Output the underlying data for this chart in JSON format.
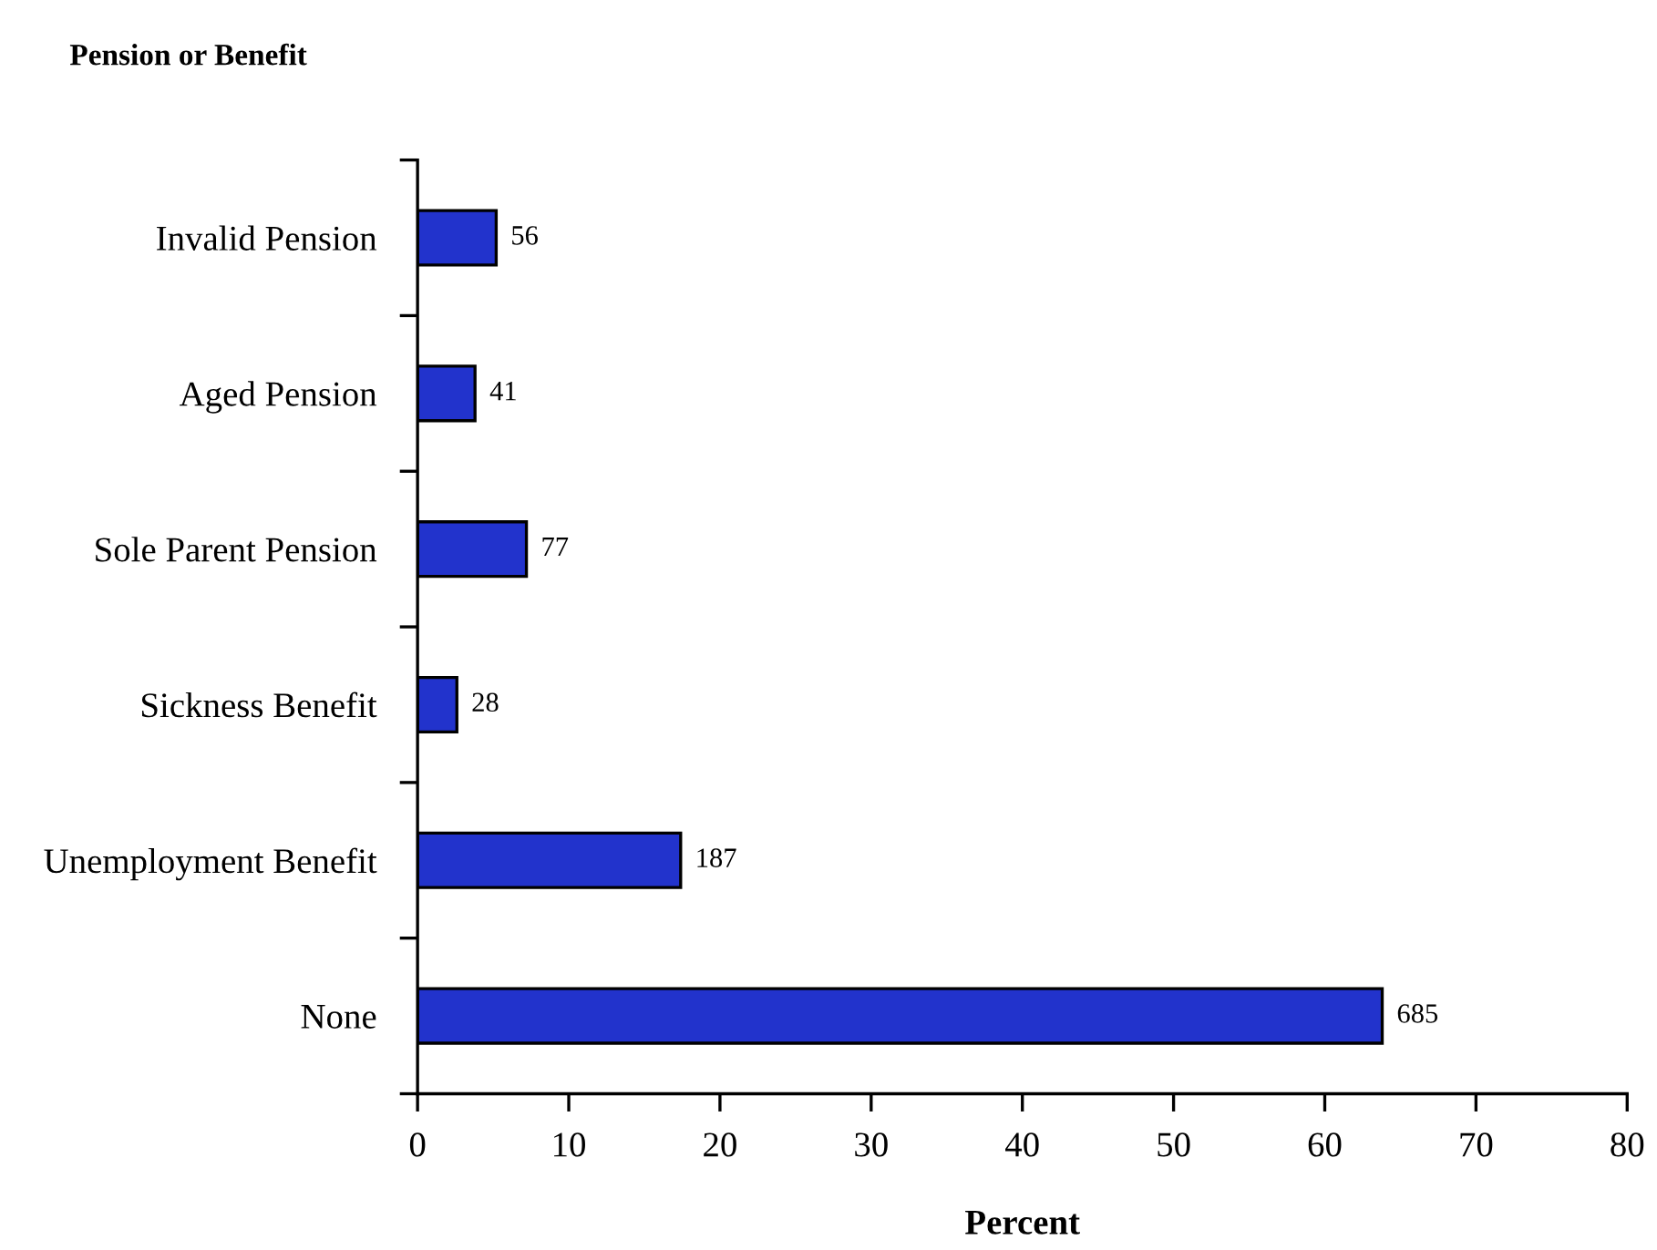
{
  "chart_data": {
    "type": "bar",
    "orientation": "horizontal",
    "ylabel": "Pension or Benefit",
    "xlabel": "Percent",
    "categories": [
      "Invalid Pension",
      "Aged Pension",
      "Sole Parent Pension",
      "Sickness Benefit",
      "Unemployment Benefit",
      "None"
    ],
    "values": [
      5.2,
      3.8,
      7.2,
      2.6,
      17.4,
      63.8
    ],
    "annotations": [
      {
        "text": "56",
        "x": 5.2,
        "y": "Invalid Pension"
      },
      {
        "text": "41",
        "x": 3.8,
        "y": "Aged Pension"
      },
      {
        "text": "77",
        "x": 7.2,
        "y": "Sole Parent Pension"
      },
      {
        "text": "28",
        "x": 2.6,
        "y": "Sickness Benefit"
      },
      {
        "text": "187",
        "x": 17.4,
        "y": "Unemployment Benefit"
      },
      {
        "text": "685",
        "x": 63.8,
        "y": "None"
      }
    ],
    "color": "#2233cc",
    "xlim": [
      0,
      80
    ],
    "xticks": [
      0,
      10,
      20,
      30,
      40,
      50,
      60,
      70,
      80
    ],
    "grid": false,
    "legend": false
  }
}
